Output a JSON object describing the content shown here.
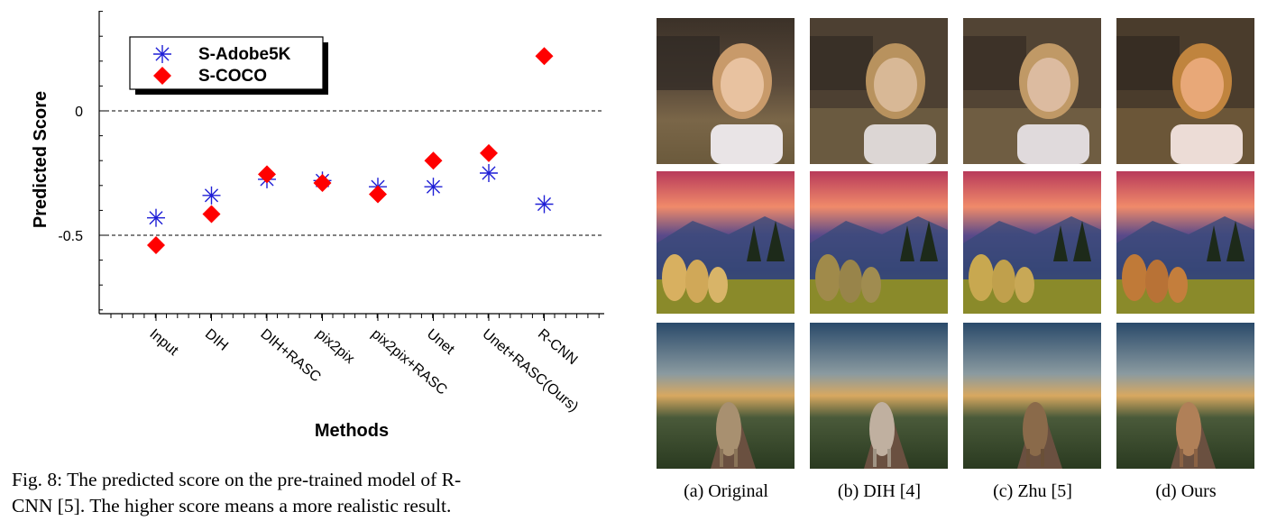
{
  "chart_data": {
    "type": "scatter",
    "xlabel": "Methods",
    "ylabel": "Predicted Score",
    "categories": [
      "Input",
      "DIH",
      "DIH+RASC",
      "pix2pix",
      "pix2pix+RASC",
      "Unet",
      "Unet+RASC(Ours)",
      "R-CNN"
    ],
    "ylim": [
      -0.8,
      0.4
    ],
    "yticks": [
      {
        "value": 0,
        "label": "0"
      },
      {
        "value": -0.5,
        "label": "-0.5"
      }
    ],
    "reference_lines": [
      0,
      -0.5
    ],
    "grid": false,
    "legend_position": "top-left",
    "series": [
      {
        "name": "S-Adobe5K",
        "marker": "asterisk",
        "color": "#1f1fd6",
        "values": [
          -0.43,
          -0.34,
          -0.275,
          -0.28,
          -0.305,
          -0.305,
          -0.25,
          -0.375
        ]
      },
      {
        "name": "S-COCO",
        "marker": "diamond",
        "color": "#ff0000",
        "values": [
          -0.54,
          -0.415,
          -0.255,
          -0.29,
          -0.335,
          -0.2,
          -0.17,
          0.22
        ]
      }
    ]
  },
  "figure_caption": {
    "line1": "Fig. 8: The predicted score on the pre-trained model of R-",
    "line2": "CNN [5]. The higher score means a more realistic result."
  },
  "grid_captions": [
    "(a) Original",
    "(b) DIH [4]",
    "(c) Zhu [5]",
    "(d) Ours"
  ]
}
